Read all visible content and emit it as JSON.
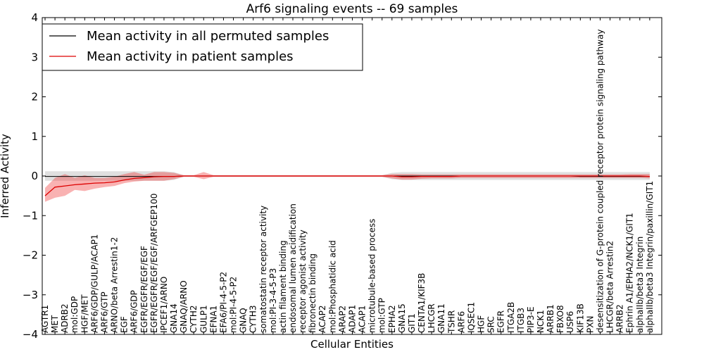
{
  "chart_data": {
    "type": "line",
    "title": "Arf6 signaling events -- 69 samples",
    "xlabel": "Cellular Entities",
    "ylabel": "Inferred Activity",
    "ylim": [
      -4,
      4
    ],
    "yticks": [
      -4,
      -3,
      -2,
      -1,
      0,
      1,
      2,
      3,
      4
    ],
    "ytick_labels": [
      "−4",
      "−3",
      "−2",
      "−1",
      "0",
      "1",
      "2",
      "3",
      "4"
    ],
    "legend": {
      "placement": "top-left",
      "entries": [
        {
          "label": "Mean activity in all permuted samples",
          "color": "#000000"
        },
        {
          "label": "Mean activity in patient samples",
          "color": "#dd0000"
        }
      ]
    },
    "categories": [
      "AGTR1",
      "MET",
      "ADRB2",
      "mol:GDP",
      "HGF/MET",
      "ARF6/GDP/GULP/ACAP1",
      "ARF6/GTP",
      "ARNO/beta Arrestin1-2",
      "EGF",
      "ARF6/GDP",
      "EGFR/EGFR/EGF/EGF",
      "EGFR/EGFR/EGF/EGF/ARFGEP100",
      "IPCEF1/ARNO",
      "GNA14",
      "GNAQ/ARNO",
      "CYTH2",
      "GULP1",
      "EFNA1",
      "EFA6/PI-4-5-P2",
      "mol:PI-4-5-P2",
      "GNAQ",
      "CYTH3",
      "somatostatin receptor activity",
      "mol:PI-3-4-5-P3",
      "actin filament binding",
      "endosomal lumen acidification",
      "receptor agonist activity",
      "fibronectin binding",
      "ACAP2",
      "mol:Phosphatidic acid",
      "ARAP2",
      "ADAP1",
      "ACAP1",
      "microtubule-based process",
      "mol:GTP",
      "EPHA2",
      "GNA15",
      "GIT1",
      "CENTA1/KIF3B",
      "LHCGR",
      "GNA11",
      "TSHR",
      "ARF6",
      "IQSEC1",
      "HGF",
      "SRC",
      "EGFR",
      "ITGA2B",
      "ITGB3",
      "PIP3-E",
      "NCK1",
      "ARRB1",
      "FBXO8",
      "USP6",
      "KIF13B",
      "PXN",
      "desensitization of G-protein coupled receptor protein signaling pathway",
      "LHCGR/beta Arrestin2",
      "ARRB2",
      "Ephrin A1/EPHA2/NCK1/GIT1",
      "alphaIIb/beta3 Integrin",
      "alphaIIb/beta3 Integrin/paxillin/GIT1"
    ],
    "series": [
      {
        "name": "Mean activity in all permuted samples",
        "color": "#000000",
        "values": [
          -0.01,
          -0.01,
          -0.01,
          -0.01,
          -0.01,
          -0.01,
          -0.01,
          -0.01,
          -0.01,
          -0.01,
          -0.01,
          -0.01,
          -0.01,
          -0.01,
          0,
          0,
          0,
          0,
          0,
          0,
          0,
          0,
          0,
          0,
          0,
          0,
          0,
          0,
          0,
          0,
          0,
          0,
          0,
          0,
          0,
          0,
          0,
          0,
          0,
          0,
          0,
          0,
          0,
          0,
          0,
          0,
          0,
          0,
          0,
          0,
          0,
          0,
          0,
          0,
          -0.01,
          -0.01,
          -0.01,
          -0.01,
          -0.01,
          -0.01,
          -0.01,
          -0.01
        ],
        "lower": [
          -0.12,
          -0.12,
          -0.12,
          -0.12,
          -0.12,
          -0.12,
          -0.12,
          -0.12,
          -0.12,
          -0.12,
          -0.12,
          -0.12,
          -0.12,
          -0.1,
          -0.02,
          -0.02,
          -0.02,
          -0.02,
          -0.02,
          -0.02,
          -0.02,
          -0.02,
          -0.02,
          -0.02,
          -0.02,
          -0.02,
          -0.02,
          -0.02,
          -0.02,
          -0.02,
          -0.02,
          -0.02,
          -0.02,
          -0.02,
          -0.02,
          -0.08,
          -0.1,
          -0.1,
          -0.1,
          -0.1,
          -0.1,
          -0.1,
          -0.1,
          -0.1,
          -0.1,
          -0.1,
          -0.1,
          -0.1,
          -0.1,
          -0.1,
          -0.1,
          -0.1,
          -0.1,
          -0.1,
          -0.1,
          -0.1,
          -0.1,
          -0.1,
          -0.1,
          -0.1,
          -0.1,
          -0.1
        ],
        "upper": [
          0.12,
          0.12,
          0.12,
          0.12,
          0.12,
          0.12,
          0.12,
          0.12,
          0.12,
          0.12,
          0.12,
          0.12,
          0.12,
          0.1,
          0.02,
          0.02,
          0.02,
          0.02,
          0.02,
          0.02,
          0.02,
          0.02,
          0.02,
          0.02,
          0.02,
          0.02,
          0.02,
          0.02,
          0.02,
          0.02,
          0.02,
          0.02,
          0.02,
          0.02,
          0.02,
          0.08,
          0.1,
          0.1,
          0.1,
          0.1,
          0.1,
          0.1,
          0.1,
          0.1,
          0.1,
          0.1,
          0.1,
          0.1,
          0.1,
          0.1,
          0.1,
          0.1,
          0.1,
          0.1,
          0.1,
          0.1,
          0.1,
          0.1,
          0.1,
          0.1,
          0.1,
          0.1
        ]
      },
      {
        "name": "Mean activity in patient samples",
        "color": "#dd0000",
        "values": [
          -0.5,
          -0.28,
          -0.25,
          -0.22,
          -0.2,
          -0.18,
          -0.17,
          -0.15,
          -0.1,
          -0.06,
          -0.04,
          -0.02,
          -0.01,
          -0.01,
          0,
          0,
          0,
          0,
          0,
          0,
          0,
          0,
          0,
          0,
          0,
          0,
          0,
          0,
          0,
          0,
          0,
          0,
          0,
          0,
          0,
          0,
          -0.02,
          -0.02,
          -0.01,
          -0.01,
          -0.01,
          -0.01,
          0,
          0,
          0,
          0,
          0,
          0,
          0,
          0,
          0,
          0,
          0,
          0,
          0,
          0,
          0,
          0,
          0,
          0,
          0,
          -0.01
        ],
        "lower": [
          -0.65,
          -0.55,
          -0.5,
          -0.35,
          -0.38,
          -0.32,
          -0.28,
          -0.25,
          -0.18,
          -0.14,
          -0.12,
          -0.12,
          -0.12,
          -0.08,
          -0.02,
          -0.02,
          -0.08,
          -0.02,
          -0.02,
          -0.02,
          -0.02,
          -0.02,
          -0.02,
          -0.02,
          -0.02,
          -0.02,
          -0.02,
          -0.02,
          -0.02,
          -0.02,
          -0.02,
          -0.02,
          -0.02,
          -0.02,
          -0.02,
          -0.06,
          -0.09,
          -0.09,
          -0.07,
          -0.06,
          -0.06,
          -0.06,
          -0.05,
          -0.05,
          -0.05,
          -0.05,
          -0.05,
          -0.05,
          -0.05,
          -0.05,
          -0.05,
          -0.05,
          -0.05,
          -0.05,
          -0.05,
          -0.05,
          -0.05,
          -0.05,
          -0.05,
          -0.05,
          -0.05,
          -0.06
        ],
        "upper": [
          -0.3,
          -0.05,
          0.05,
          -0.05,
          0.02,
          -0.05,
          -0.05,
          -0.02,
          0.05,
          0.1,
          0.03,
          0.1,
          0.1,
          0.08,
          0.02,
          0.02,
          0.1,
          0.02,
          0.02,
          0.02,
          0.02,
          0.02,
          0.02,
          0.02,
          0.02,
          0.02,
          0.02,
          0.02,
          0.02,
          0.02,
          0.02,
          0.02,
          0.02,
          0.02,
          0.02,
          0.05,
          0.05,
          0.05,
          0.04,
          0.04,
          0.04,
          0.04,
          0.04,
          0.04,
          0.04,
          0.04,
          0.04,
          0.04,
          0.04,
          0.04,
          0.04,
          0.04,
          0.04,
          0.04,
          0.04,
          0.04,
          0.04,
          0.04,
          0.04,
          0.05,
          0.05,
          0.05
        ]
      }
    ]
  }
}
